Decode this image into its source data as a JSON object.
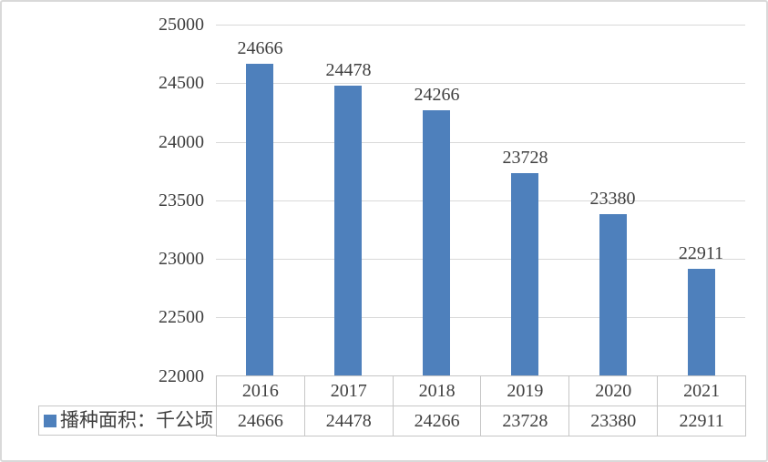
{
  "chart_data": {
    "type": "bar",
    "title": "",
    "xlabel": "",
    "ylabel": "",
    "categories": [
      "2016",
      "2017",
      "2018",
      "2019",
      "2020",
      "2021"
    ],
    "series": [
      {
        "name": "播种面积：千公顷",
        "values": [
          24666,
          24478,
          24266,
          23728,
          23380,
          22911
        ]
      }
    ],
    "data_labels": [
      24666,
      24478,
      24266,
      23728,
      23380,
      22911
    ],
    "ylim": [
      22000,
      25000
    ],
    "ytick_step": 500,
    "yticks": [
      25000,
      24500,
      24000,
      23500,
      23000,
      22500,
      22000
    ],
    "grid": true,
    "has_data_table": true,
    "legend_position": "bottom-left",
    "colors": {
      "bar": "#4e80bc",
      "gridline": "#d9d9d9",
      "table_border": "#c6c6c6",
      "text": "#3f3f3f",
      "frame_border": "#d9d9d9",
      "background": "#ffffff"
    }
  },
  "legend": {
    "swatch_icon": "square",
    "label": "播种面积：千公顷"
  }
}
